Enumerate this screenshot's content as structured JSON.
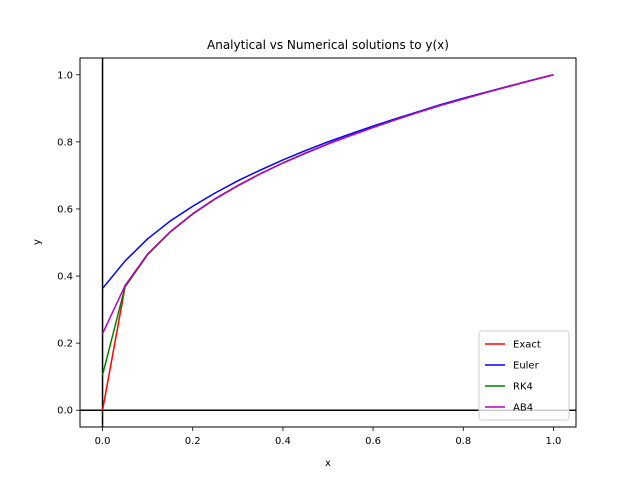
{
  "chart_data": {
    "type": "line",
    "title": "Analytical vs Numerical solutions to y(x)",
    "xlabel": "x",
    "ylabel": "y",
    "xlim": [
      -0.05,
      1.05
    ],
    "ylim": [
      -0.05,
      1.05
    ],
    "xticks": [
      "0.0",
      "0.2",
      "0.4",
      "0.6",
      "0.8",
      "1.0"
    ],
    "yticks": [
      "0.0",
      "0.2",
      "0.4",
      "0.6",
      "0.8",
      "1.0"
    ],
    "grid": false,
    "legend_position": "bottom-right",
    "reference_lines": {
      "x": 0,
      "y": 0
    },
    "series": [
      {
        "name": "Exact",
        "color": "#ff0000",
        "x": [
          0,
          0.05,
          0.1,
          0.15,
          0.2,
          0.25,
          0.3,
          0.35,
          0.4,
          0.45,
          0.5,
          0.55,
          0.6,
          0.65,
          0.7,
          0.75,
          0.8,
          0.85,
          0.9,
          0.95,
          1.0
        ],
        "y": [
          0,
          0.368,
          0.464,
          0.531,
          0.585,
          0.63,
          0.669,
          0.705,
          0.737,
          0.766,
          0.794,
          0.819,
          0.843,
          0.866,
          0.888,
          0.909,
          0.928,
          0.947,
          0.965,
          0.983,
          1.0
        ]
      },
      {
        "name": "Euler",
        "color": "#0000ff",
        "x": [
          0,
          0.05,
          0.1,
          0.15,
          0.2,
          0.25,
          0.3,
          0.35,
          0.4,
          0.45,
          0.5,
          0.55,
          0.6,
          0.65,
          0.7,
          0.75,
          0.8,
          0.85,
          0.9,
          0.95,
          1.0
        ],
        "y": [
          0.363,
          0.445,
          0.511,
          0.564,
          0.608,
          0.648,
          0.684,
          0.716,
          0.746,
          0.774,
          0.8,
          0.824,
          0.847,
          0.869,
          0.89,
          0.911,
          0.93,
          0.948,
          0.966,
          0.983,
          1.0
        ]
      },
      {
        "name": "RK4",
        "color": "#008000",
        "x": [
          0,
          0.05,
          0.1,
          0.15,
          0.2,
          0.25,
          0.3,
          0.35,
          0.4,
          0.45,
          0.5,
          0.55,
          0.6,
          0.65,
          0.7,
          0.75,
          0.8,
          0.85,
          0.9,
          0.95,
          1.0
        ],
        "y": [
          0.105,
          0.368,
          0.464,
          0.531,
          0.585,
          0.63,
          0.669,
          0.705,
          0.737,
          0.766,
          0.794,
          0.819,
          0.843,
          0.866,
          0.888,
          0.909,
          0.928,
          0.947,
          0.965,
          0.983,
          1.0
        ]
      },
      {
        "name": "AB4",
        "color": "#bf00bf",
        "x": [
          0,
          0.05,
          0.1,
          0.15,
          0.2,
          0.25,
          0.3,
          0.35,
          0.4,
          0.45,
          0.5,
          0.55,
          0.6,
          0.65,
          0.7,
          0.75,
          0.8,
          0.85,
          0.9,
          0.95,
          1.0
        ],
        "y": [
          0.228,
          0.372,
          0.466,
          0.532,
          0.586,
          0.631,
          0.67,
          0.705,
          0.737,
          0.767,
          0.794,
          0.819,
          0.843,
          0.866,
          0.888,
          0.909,
          0.928,
          0.947,
          0.965,
          0.983,
          1.0
        ]
      }
    ]
  }
}
